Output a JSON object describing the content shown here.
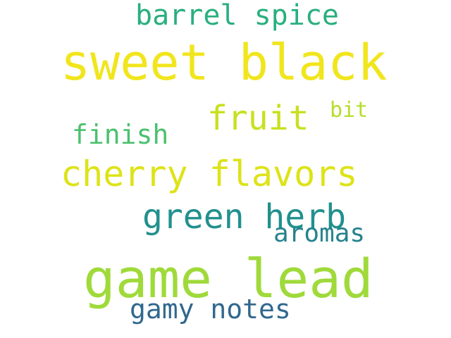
{
  "words": [
    {
      "text": "sweet black",
      "color": "#f1e51d"
    },
    {
      "text": "game lead",
      "color": "#9fda3a"
    },
    {
      "text": "cherry flavors",
      "color": "#dde318"
    },
    {
      "text": "fruit",
      "color": "#c8e020"
    },
    {
      "text": "green herb",
      "color": "#21908d"
    },
    {
      "text": "barrel spice",
      "color": "#29af7f"
    },
    {
      "text": "gamy notes",
      "color": "#31688e"
    },
    {
      "text": "finish",
      "color": "#4ac16d"
    },
    {
      "text": "aromas",
      "color": "#26828e"
    },
    {
      "text": "bit",
      "color": "#b5de2b"
    }
  ]
}
